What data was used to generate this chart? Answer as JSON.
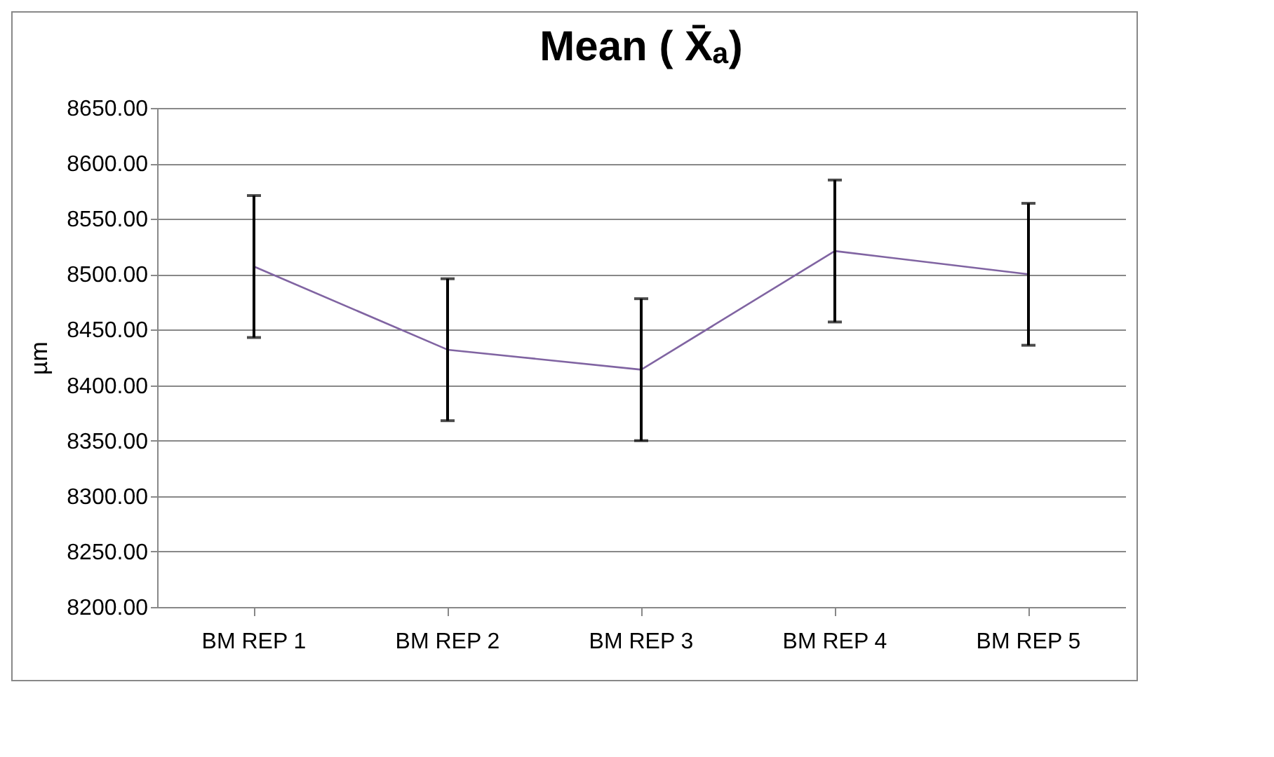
{
  "chart_data": {
    "type": "line",
    "title": "Mean ( X̄ₐ)",
    "ylabel": "µm",
    "categories": [
      "BM REP 1",
      "BM REP 2",
      "BM REP 3",
      "BM REP 4",
      "BM REP 5"
    ],
    "series": [
      {
        "color": "#8064a2",
        "values": [
          8507,
          8432,
          8414,
          8521,
          8500
        ],
        "errors": [
          64,
          64,
          64,
          64,
          64
        ]
      }
    ],
    "ylim": [
      8200,
      8650
    ],
    "yticks": [
      {
        "value": 8200,
        "label": "8200.00"
      },
      {
        "value": 8250,
        "label": "8250.00"
      },
      {
        "value": 8300,
        "label": "8300.00"
      },
      {
        "value": 8350,
        "label": "8350.00"
      },
      {
        "value": 8400,
        "label": "8400.00"
      },
      {
        "value": 8450,
        "label": "8450.00"
      },
      {
        "value": 8500,
        "label": "8500.00"
      },
      {
        "value": 8550,
        "label": "8550.00"
      },
      {
        "value": 8600,
        "label": "8600.00"
      },
      {
        "value": 8650,
        "label": "8650.00"
      }
    ],
    "grid": "y",
    "marker": "none",
    "line_style": "solid"
  }
}
